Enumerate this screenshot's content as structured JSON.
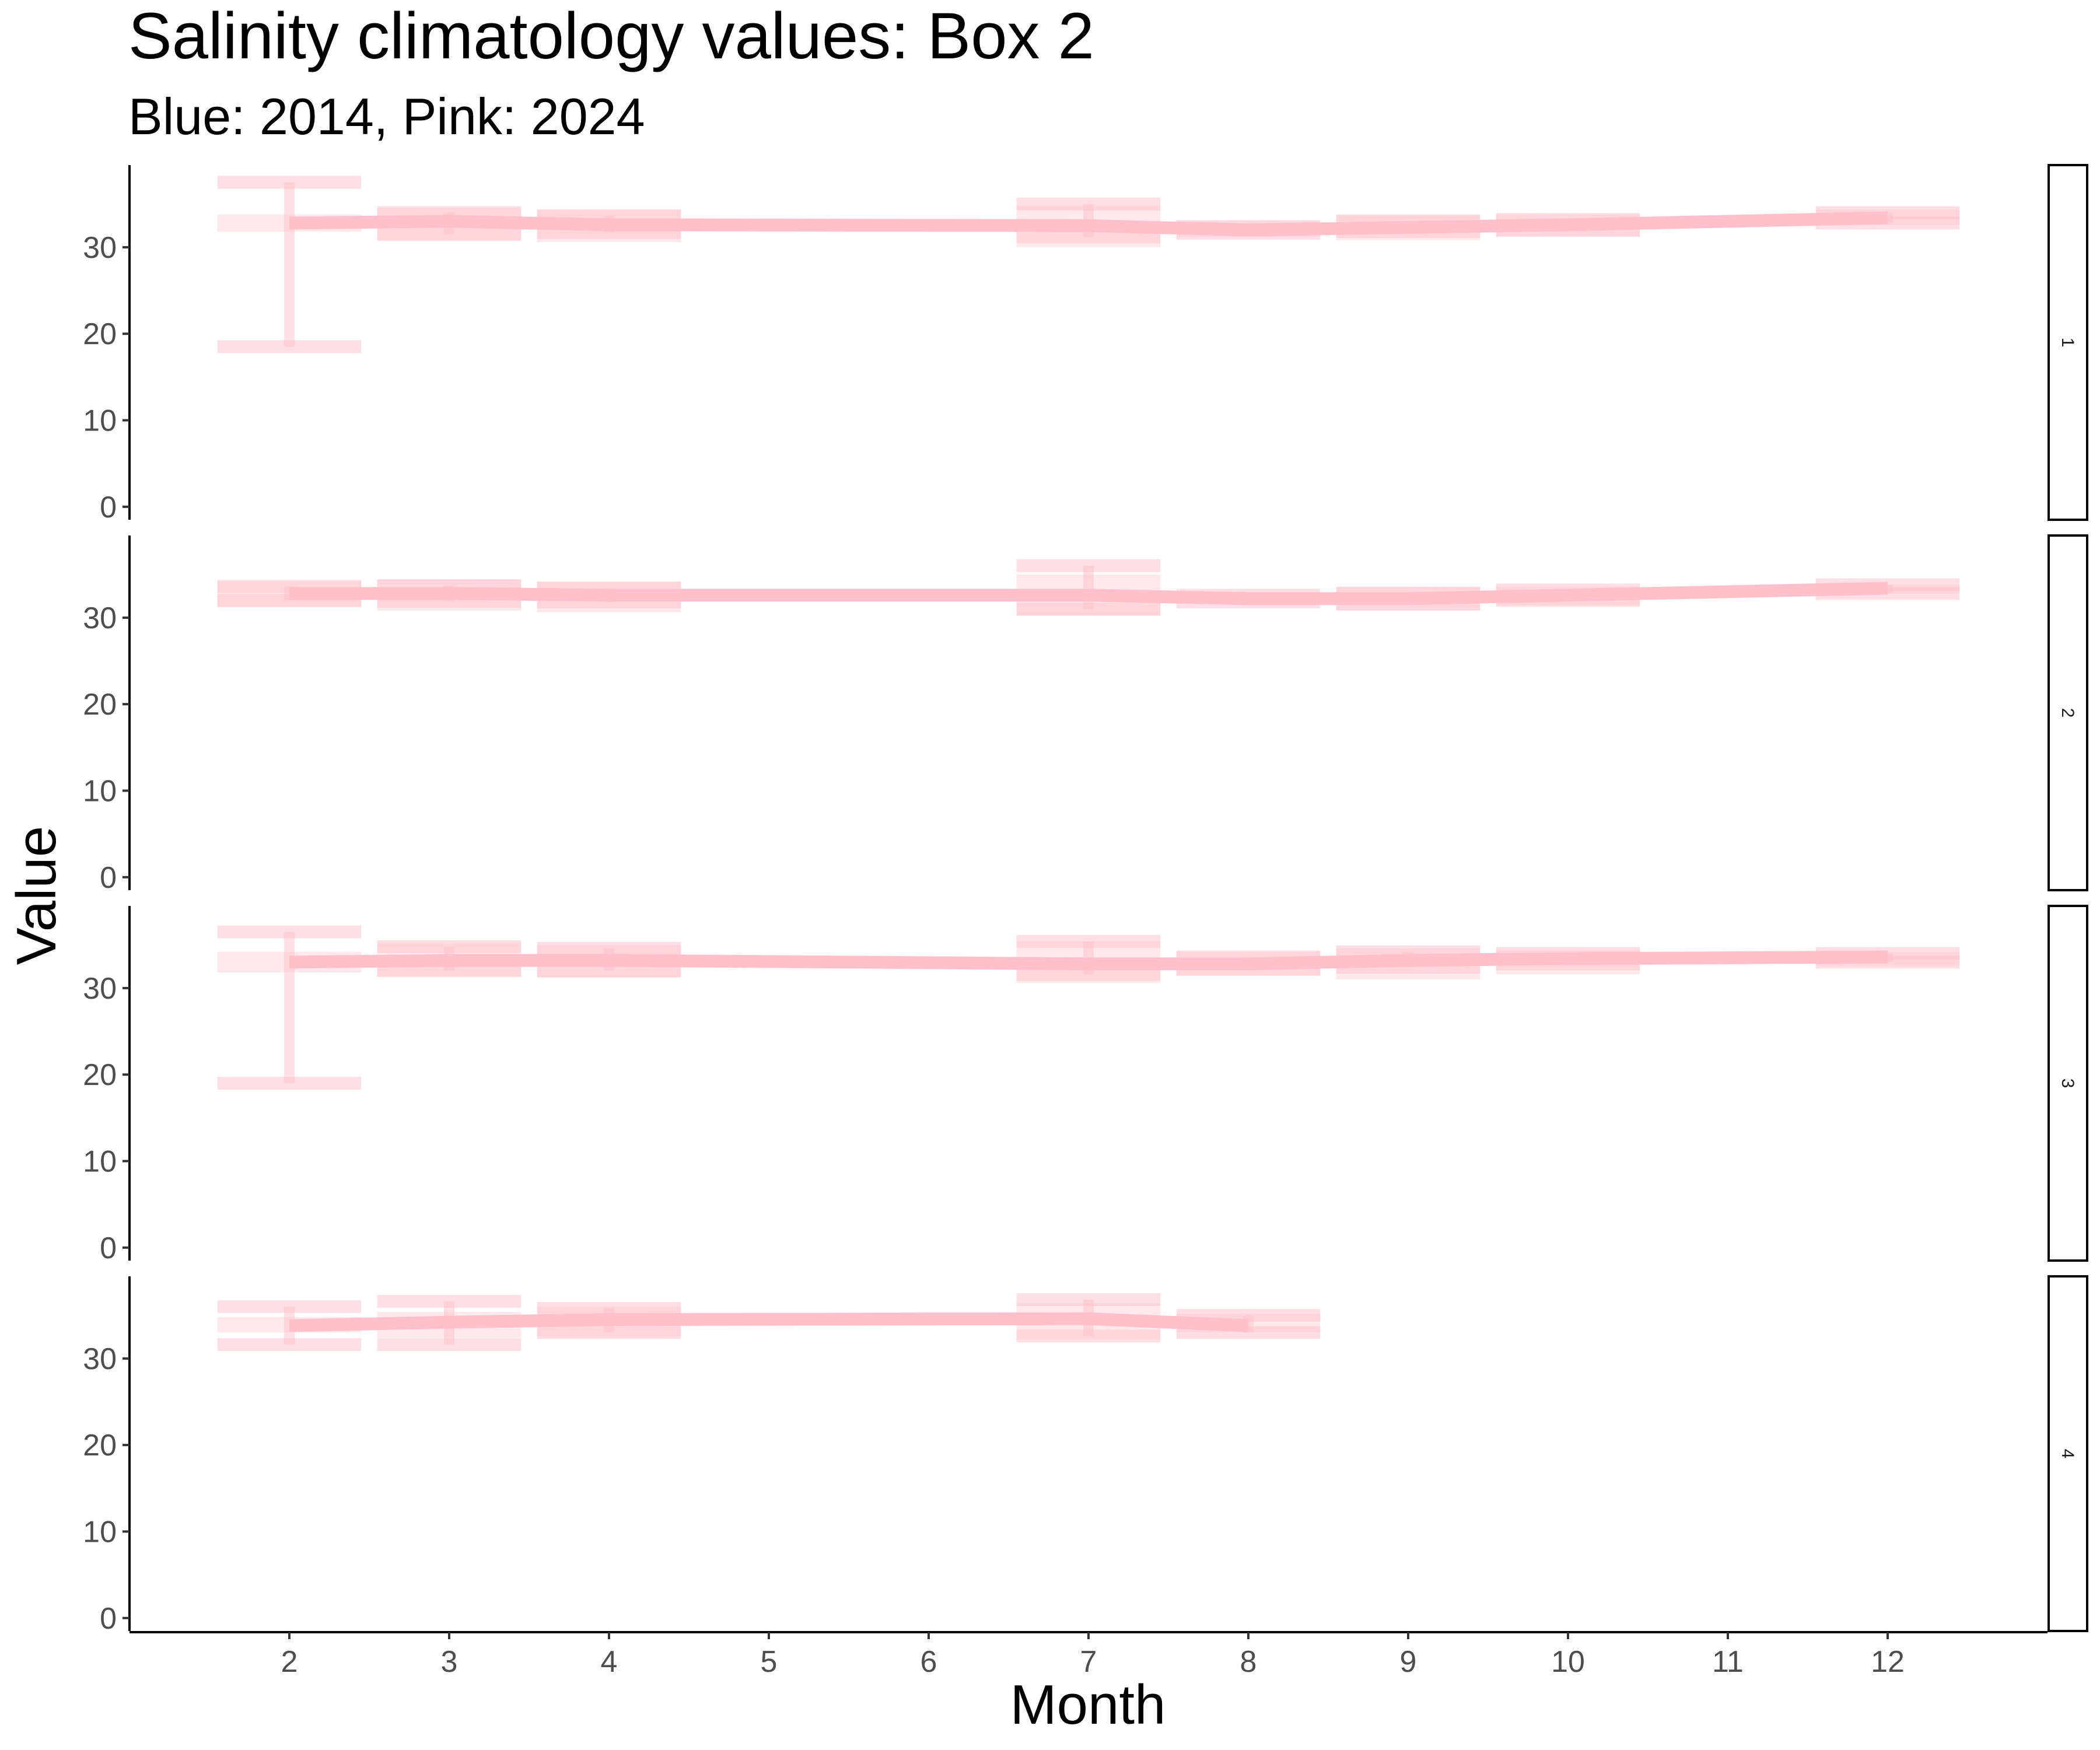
{
  "chart_data": {
    "type": "line",
    "title": "Salinity climatology values: Box 2",
    "subtitle": "Blue: 2014, Pink: 2024",
    "xlabel": "Month",
    "ylabel": "Value",
    "x_ticks": [
      2,
      3,
      4,
      5,
      6,
      7,
      8,
      9,
      10,
      11,
      12
    ],
    "y_ticks": [
      0,
      10,
      20,
      30
    ],
    "xlim": [
      1,
      13
    ],
    "ylim": [
      -1.5,
      39.5
    ],
    "grid": false,
    "colors": {
      "pink_line": "#ffc0cb",
      "pink_error": "#ffc0cb"
    },
    "panels": [
      {
        "strip": "1",
        "series": [
          {
            "x": [
              2,
              3,
              4,
              7,
              8,
              9,
              10,
              12
            ],
            "y": [
              32.8,
              33.0,
              32.6,
              32.5,
              32.0,
              32.3,
              32.6,
              33.4
            ],
            "band": [
              [
                31.8,
                33.8
              ],
              [
                30.8,
                34.5
              ],
              [
                30.6,
                34.4
              ],
              [
                30.0,
                34.8
              ],
              [
                31.2,
                33.0
              ],
              [
                30.8,
                33.8
              ],
              [
                31.2,
                33.8
              ],
              [
                32.6,
                34.4
              ]
            ],
            "error": [
              [
                18.5,
                37.5
              ],
              [
                31.5,
                34.0
              ],
              [
                31.7,
                33.6
              ],
              [
                31.2,
                35.0
              ],
              [
                31.6,
                32.4
              ],
              [
                31.8,
                33.0
              ],
              [
                32.0,
                33.2
              ],
              [
                32.8,
                34.0
              ]
            ]
          }
        ]
      },
      {
        "strip": "2",
        "series": [
          {
            "x": [
              2,
              3,
              4,
              7,
              8,
              9,
              10,
              12
            ],
            "y": [
              32.8,
              32.8,
              32.6,
              32.6,
              32.2,
              32.2,
              32.6,
              33.4
            ],
            "band": [
              [
                31.2,
                34.2
              ],
              [
                30.8,
                34.4
              ],
              [
                30.6,
                34.2
              ],
              [
                30.2,
                35.0
              ],
              [
                31.6,
                33.0
              ],
              [
                30.8,
                33.6
              ],
              [
                31.4,
                33.6
              ],
              [
                32.8,
                33.8
              ]
            ],
            "error": [
              [
                32.0,
                33.6
              ],
              [
                31.9,
                33.7
              ],
              [
                31.8,
                33.4
              ],
              [
                31.0,
                36.0
              ],
              [
                31.8,
                32.6
              ],
              [
                31.6,
                32.8
              ],
              [
                32.0,
                33.2
              ],
              [
                32.8,
                33.8
              ]
            ]
          }
        ]
      },
      {
        "strip": "3",
        "series": [
          {
            "x": [
              2,
              3,
              4,
              7,
              8,
              9,
              10,
              12
            ],
            "y": [
              33.0,
              33.2,
              33.2,
              32.8,
              32.8,
              33.2,
              33.4,
              33.6
            ],
            "band": [
              [
                31.8,
                34.2
              ],
              [
                31.4,
                35.2
              ],
              [
                31.2,
                35.0
              ],
              [
                30.6,
                35.4
              ],
              [
                31.4,
                34.2
              ],
              [
                31.0,
                34.6
              ],
              [
                31.6,
                34.4
              ],
              [
                32.6,
                34.2
              ]
            ],
            "error": [
              [
                19.0,
                36.5
              ],
              [
                32.0,
                34.8
              ],
              [
                32.0,
                34.6
              ],
              [
                31.6,
                35.4
              ],
              [
                32.2,
                33.6
              ],
              [
                32.4,
                34.2
              ],
              [
                32.8,
                34.0
              ],
              [
                33.0,
                34.0
              ]
            ]
          }
        ]
      },
      {
        "strip": "4",
        "series": [
          {
            "x": [
              2,
              3,
              4,
              7,
              8
            ],
            "y": [
              33.8,
              34.2,
              34.5,
              34.6,
              33.8
            ],
            "band": [
              [
                33.0,
                34.8
              ],
              [
                32.4,
                35.4
              ],
              [
                32.6,
                36.0
              ],
              [
                32.2,
                36.4
              ],
              [
                33.0,
                35.2
              ]
            ],
            "error": [
              [
                31.6,
                36.0
              ],
              [
                31.6,
                36.6
              ],
              [
                33.0,
                35.8
              ],
              [
                32.6,
                36.8
              ],
              [
                33.0,
                35.0
              ]
            ]
          }
        ]
      }
    ]
  }
}
